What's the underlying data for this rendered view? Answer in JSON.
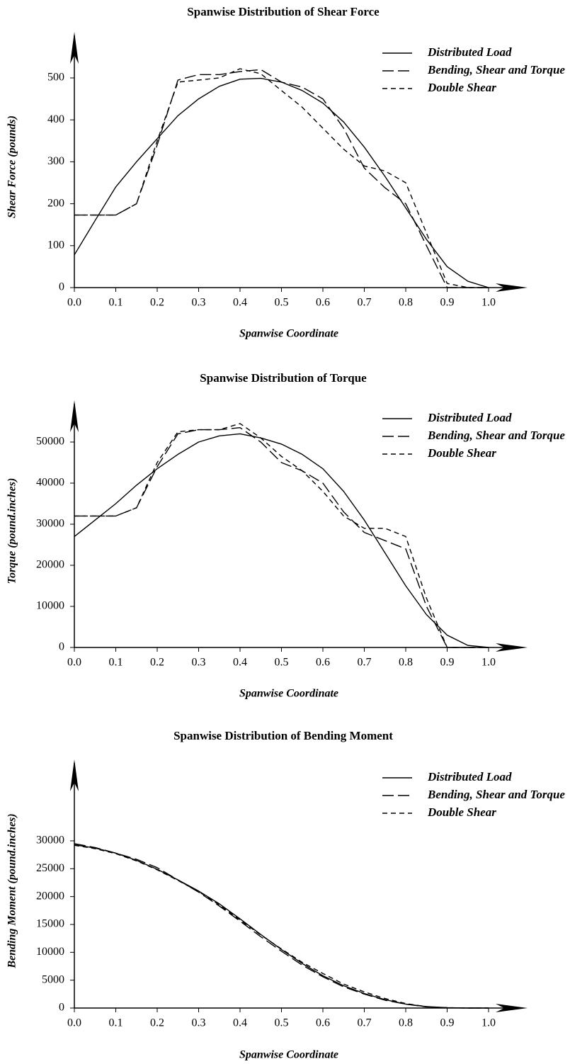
{
  "chart_data": [
    {
      "type": "line",
      "title": "Spanwise Distribution of Shear Force",
      "x_label": "Spanwise Coordinate",
      "y_label": "Shear Force (pounds)",
      "x": [
        0,
        0.05,
        0.1,
        0.15,
        0.2,
        0.25,
        0.3,
        0.35,
        0.4,
        0.45,
        0.5,
        0.55,
        0.6,
        0.65,
        0.7,
        0.75,
        0.8,
        0.85,
        0.9,
        0.95,
        1.0
      ],
      "series": [
        {
          "name": "Distributed Load",
          "color": "#000000",
          "dash": "solid",
          "values": [
            78,
            160,
            240,
            300,
            355,
            410,
            450,
            480,
            497,
            499,
            490,
            470,
            440,
            395,
            335,
            265,
            190,
            115,
            50,
            15,
            0
          ]
        },
        {
          "name": "Bending, Shear and Torque",
          "color": "#000000",
          "dash": "long",
          "values": [
            173,
            173,
            173,
            200,
            340,
            495,
            508,
            508,
            515,
            520,
            490,
            478,
            450,
            380,
            285,
            238,
            200,
            100,
            0,
            0,
            0
          ]
        },
        {
          "name": "Double Shear",
          "color": "#000000",
          "dash": "short",
          "values": [
            173,
            173,
            173,
            200,
            350,
            490,
            495,
            500,
            522,
            510,
            470,
            430,
            380,
            330,
            290,
            278,
            250,
            130,
            10,
            0,
            0
          ]
        }
      ],
      "xlim": [
        0,
        1.0
      ],
      "xticks": [
        {
          "value": 0,
          "label": "0.0"
        },
        0.1,
        0.2,
        0.3,
        0.4,
        0.5,
        0.6,
        0.7,
        0.8,
        0.9,
        {
          "value": 1,
          "label": "1.0"
        }
      ],
      "ylim": [
        0,
        500
      ],
      "yticks": [
        0,
        100,
        200,
        300,
        400,
        500
      ],
      "legend": "top-right"
    },
    {
      "type": "line",
      "title": "Spanwise Distribution of Torque",
      "x_label": "Spanwise Coordinate",
      "y_label": "Torque (pound.inches)",
      "x": [
        0,
        0.05,
        0.1,
        0.15,
        0.2,
        0.25,
        0.3,
        0.35,
        0.4,
        0.45,
        0.5,
        0.55,
        0.6,
        0.65,
        0.7,
        0.75,
        0.8,
        0.85,
        0.9,
        0.95,
        1.0
      ],
      "series": [
        {
          "name": "Distributed Load",
          "color": "#000000",
          "dash": "solid",
          "values": [
            27000,
            31000,
            35000,
            39500,
            43500,
            47000,
            50000,
            51500,
            52000,
            51000,
            49500,
            47000,
            43500,
            38000,
            31000,
            23000,
            15000,
            8000,
            3000,
            500,
            0
          ]
        },
        {
          "name": "Bending, Shear and Torque",
          "color": "#000000",
          "dash": "long",
          "values": [
            32000,
            32000,
            32000,
            34000,
            44000,
            52000,
            53000,
            53000,
            53500,
            50000,
            45000,
            43000,
            40000,
            33000,
            28000,
            26000,
            24000,
            10000,
            0,
            0,
            0
          ]
        },
        {
          "name": "Double Shear",
          "color": "#000000",
          "dash": "short",
          "values": [
            32000,
            32000,
            32000,
            34000,
            45000,
            52500,
            53000,
            53000,
            54500,
            51000,
            46500,
            43000,
            38000,
            32000,
            29000,
            29000,
            27000,
            12000,
            0,
            0,
            0
          ]
        }
      ],
      "xlim": [
        0,
        1.0
      ],
      "xticks": [
        {
          "value": 0,
          "label": "0.0"
        },
        0.1,
        0.2,
        0.3,
        0.4,
        0.5,
        0.6,
        0.7,
        0.8,
        0.9,
        {
          "value": 1,
          "label": "1.0"
        }
      ],
      "ylim": [
        0,
        50000
      ],
      "yticks": [
        0,
        10000,
        20000,
        30000,
        40000,
        50000
      ],
      "legend": "top-right"
    },
    {
      "type": "line",
      "title": "Spanwise Distribution of Bending Moment",
      "x_label": "Spanwise Coordinate",
      "y_label": "Bending Moment (pound.inches)",
      "x": [
        0,
        0.05,
        0.1,
        0.15,
        0.2,
        0.25,
        0.3,
        0.35,
        0.4,
        0.45,
        0.5,
        0.55,
        0.6,
        0.65,
        0.7,
        0.75,
        0.8,
        0.85,
        0.9,
        0.95,
        1.0
      ],
      "series": [
        {
          "name": "Distributed Load",
          "color": "#000000",
          "dash": "solid",
          "values": [
            29300,
            28700,
            27800,
            26500,
            24900,
            23000,
            21000,
            18700,
            16000,
            13200,
            10500,
            8000,
            5800,
            4000,
            2600,
            1500,
            700,
            250,
            60,
            0,
            0
          ]
        },
        {
          "name": "Bending, Shear and Torque",
          "color": "#000000",
          "dash": "long",
          "values": [
            29500,
            28800,
            27800,
            26700,
            25200,
            23000,
            20800,
            18300,
            15600,
            12800,
            10200,
            7700,
            5600,
            3800,
            2500,
            1400,
            700,
            200,
            50,
            0,
            0
          ]
        },
        {
          "name": "Double Shear",
          "color": "#000000",
          "dash": "short",
          "values": [
            29200,
            28600,
            27700,
            26400,
            24800,
            22900,
            20900,
            18500,
            15800,
            13100,
            10600,
            8200,
            6200,
            4300,
            2900,
            1700,
            800,
            250,
            60,
            0,
            0
          ]
        }
      ],
      "xlim": [
        0,
        1.0
      ],
      "xticks": [
        {
          "value": 0,
          "label": "0.0"
        },
        0.1,
        0.2,
        0.3,
        0.4,
        0.5,
        0.6,
        0.7,
        0.8,
        0.9,
        {
          "value": 1,
          "label": "1.0"
        }
      ],
      "ylim": [
        0,
        30000
      ],
      "yticks": [
        0,
        5000,
        10000,
        15000,
        20000,
        25000,
        30000
      ],
      "legend": "top-right"
    }
  ]
}
